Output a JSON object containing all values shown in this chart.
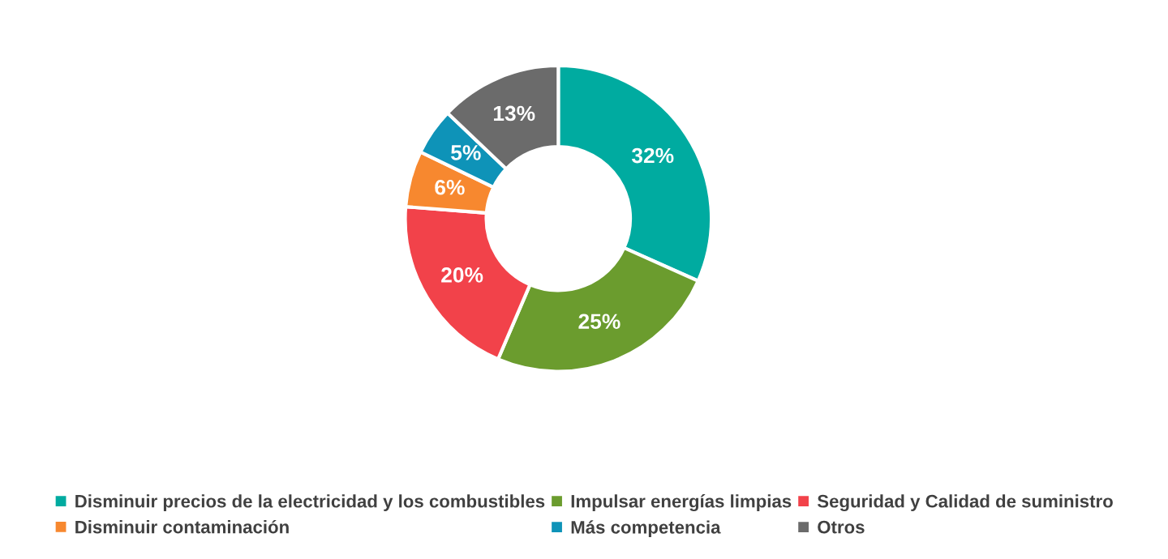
{
  "chart_data": {
    "type": "donut",
    "categories": [
      "Disminuir precios de la electricidad y los combustibles",
      "Impulsar energías limpias",
      "Seguridad y Calidad de suministro",
      "Disminuir contaminación",
      "Más competencia",
      "Otros"
    ],
    "values": [
      32,
      25,
      20,
      6,
      5,
      13
    ],
    "colors": [
      "#00aba0",
      "#6b9c2e",
      "#f2424a",
      "#f7882f",
      "#0e93b8",
      "#6b6b6b"
    ],
    "value_labels": [
      "32%",
      "25%",
      "20%",
      "6%",
      "5%",
      "13%"
    ],
    "legend": "bottom"
  }
}
